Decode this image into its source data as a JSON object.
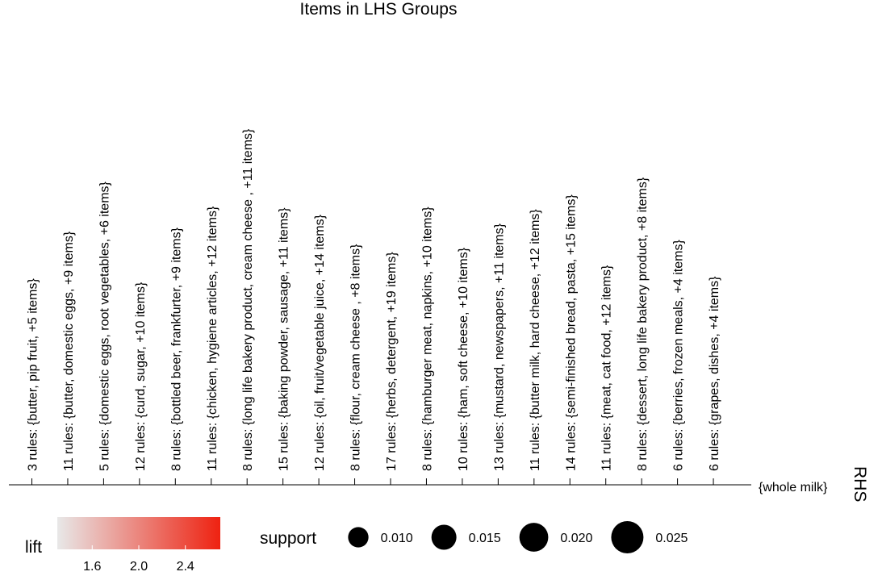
{
  "chart_data": {
    "type": "grouped-matrix",
    "title": "Items in LHS Groups",
    "y_axis_label": "RHS",
    "rhs": [
      "{whole milk}"
    ],
    "lhs_groups": [
      {
        "label": "3 rules: {butter, pip fruit, +5 items}",
        "support": null,
        "lift": null
      },
      {
        "label": "11 rules: {butter, domestic eggs, +9 items}",
        "support": null,
        "lift": null
      },
      {
        "label": "5 rules: {domestic eggs, root vegetables, +6 items}",
        "support": null,
        "lift": null
      },
      {
        "label": "12 rules: {curd, sugar, +10 items}",
        "support": null,
        "lift": null
      },
      {
        "label": "8 rules: {bottled beer, frankfurter, +9 items}",
        "support": null,
        "lift": null
      },
      {
        "label": "11 rules: {chicken, hygiene articles, +12 items}",
        "support": null,
        "lift": null
      },
      {
        "label": "8 rules: {long life bakery product, cream cheese , +11 items}",
        "support": null,
        "lift": null
      },
      {
        "label": "15 rules: {baking powder, sausage, +11 items}",
        "support": null,
        "lift": null
      },
      {
        "label": "12 rules: {oil, fruit/vegetable juice, +14 items}",
        "support": null,
        "lift": null
      },
      {
        "label": "8 rules: {flour, cream cheese , +8 items}",
        "support": null,
        "lift": null
      },
      {
        "label": "17 rules: {herbs, detergent, +19 items}",
        "support": null,
        "lift": null
      },
      {
        "label": "8 rules: {hamburger meat, napkins, +10 items}",
        "support": null,
        "lift": null
      },
      {
        "label": "10 rules: {ham, soft cheese, +10 items}",
        "support": null,
        "lift": null
      },
      {
        "label": "13 rules: {mustard, newspapers, +11 items}",
        "support": null,
        "lift": null
      },
      {
        "label": "11 rules: {butter milk, hard cheese, +12 items}",
        "support": null,
        "lift": null
      },
      {
        "label": "14 rules: {semi-finished bread, pasta, +15 items}",
        "support": null,
        "lift": null
      },
      {
        "label": "11 rules: {meat, cat food, +12 items}",
        "support": null,
        "lift": null
      },
      {
        "label": "8 rules: {dessert, long life bakery product, +8 items}",
        "support": null,
        "lift": null
      },
      {
        "label": "6 rules: {berries, frozen meals, +4 items}",
        "support": null,
        "lift": null
      },
      {
        "label": "6 rules: {grapes, dishes, +4 items}",
        "support": null,
        "lift": null
      }
    ],
    "legend": {
      "lift": {
        "title": "lift",
        "ticks": [
          "1.6",
          "2.0",
          "2.4"
        ],
        "tick_values": [
          1.6,
          2.0,
          2.4
        ],
        "range": [
          1.3,
          2.7
        ],
        "color_low": "#e8e8e8",
        "color_high": "#ee2211"
      },
      "support": {
        "title": "support",
        "ticks": [
          "0.010",
          "0.015",
          "0.020",
          "0.025"
        ],
        "tick_values": [
          0.01,
          0.015,
          0.02,
          0.025
        ]
      }
    },
    "legend_position": "bottom"
  }
}
